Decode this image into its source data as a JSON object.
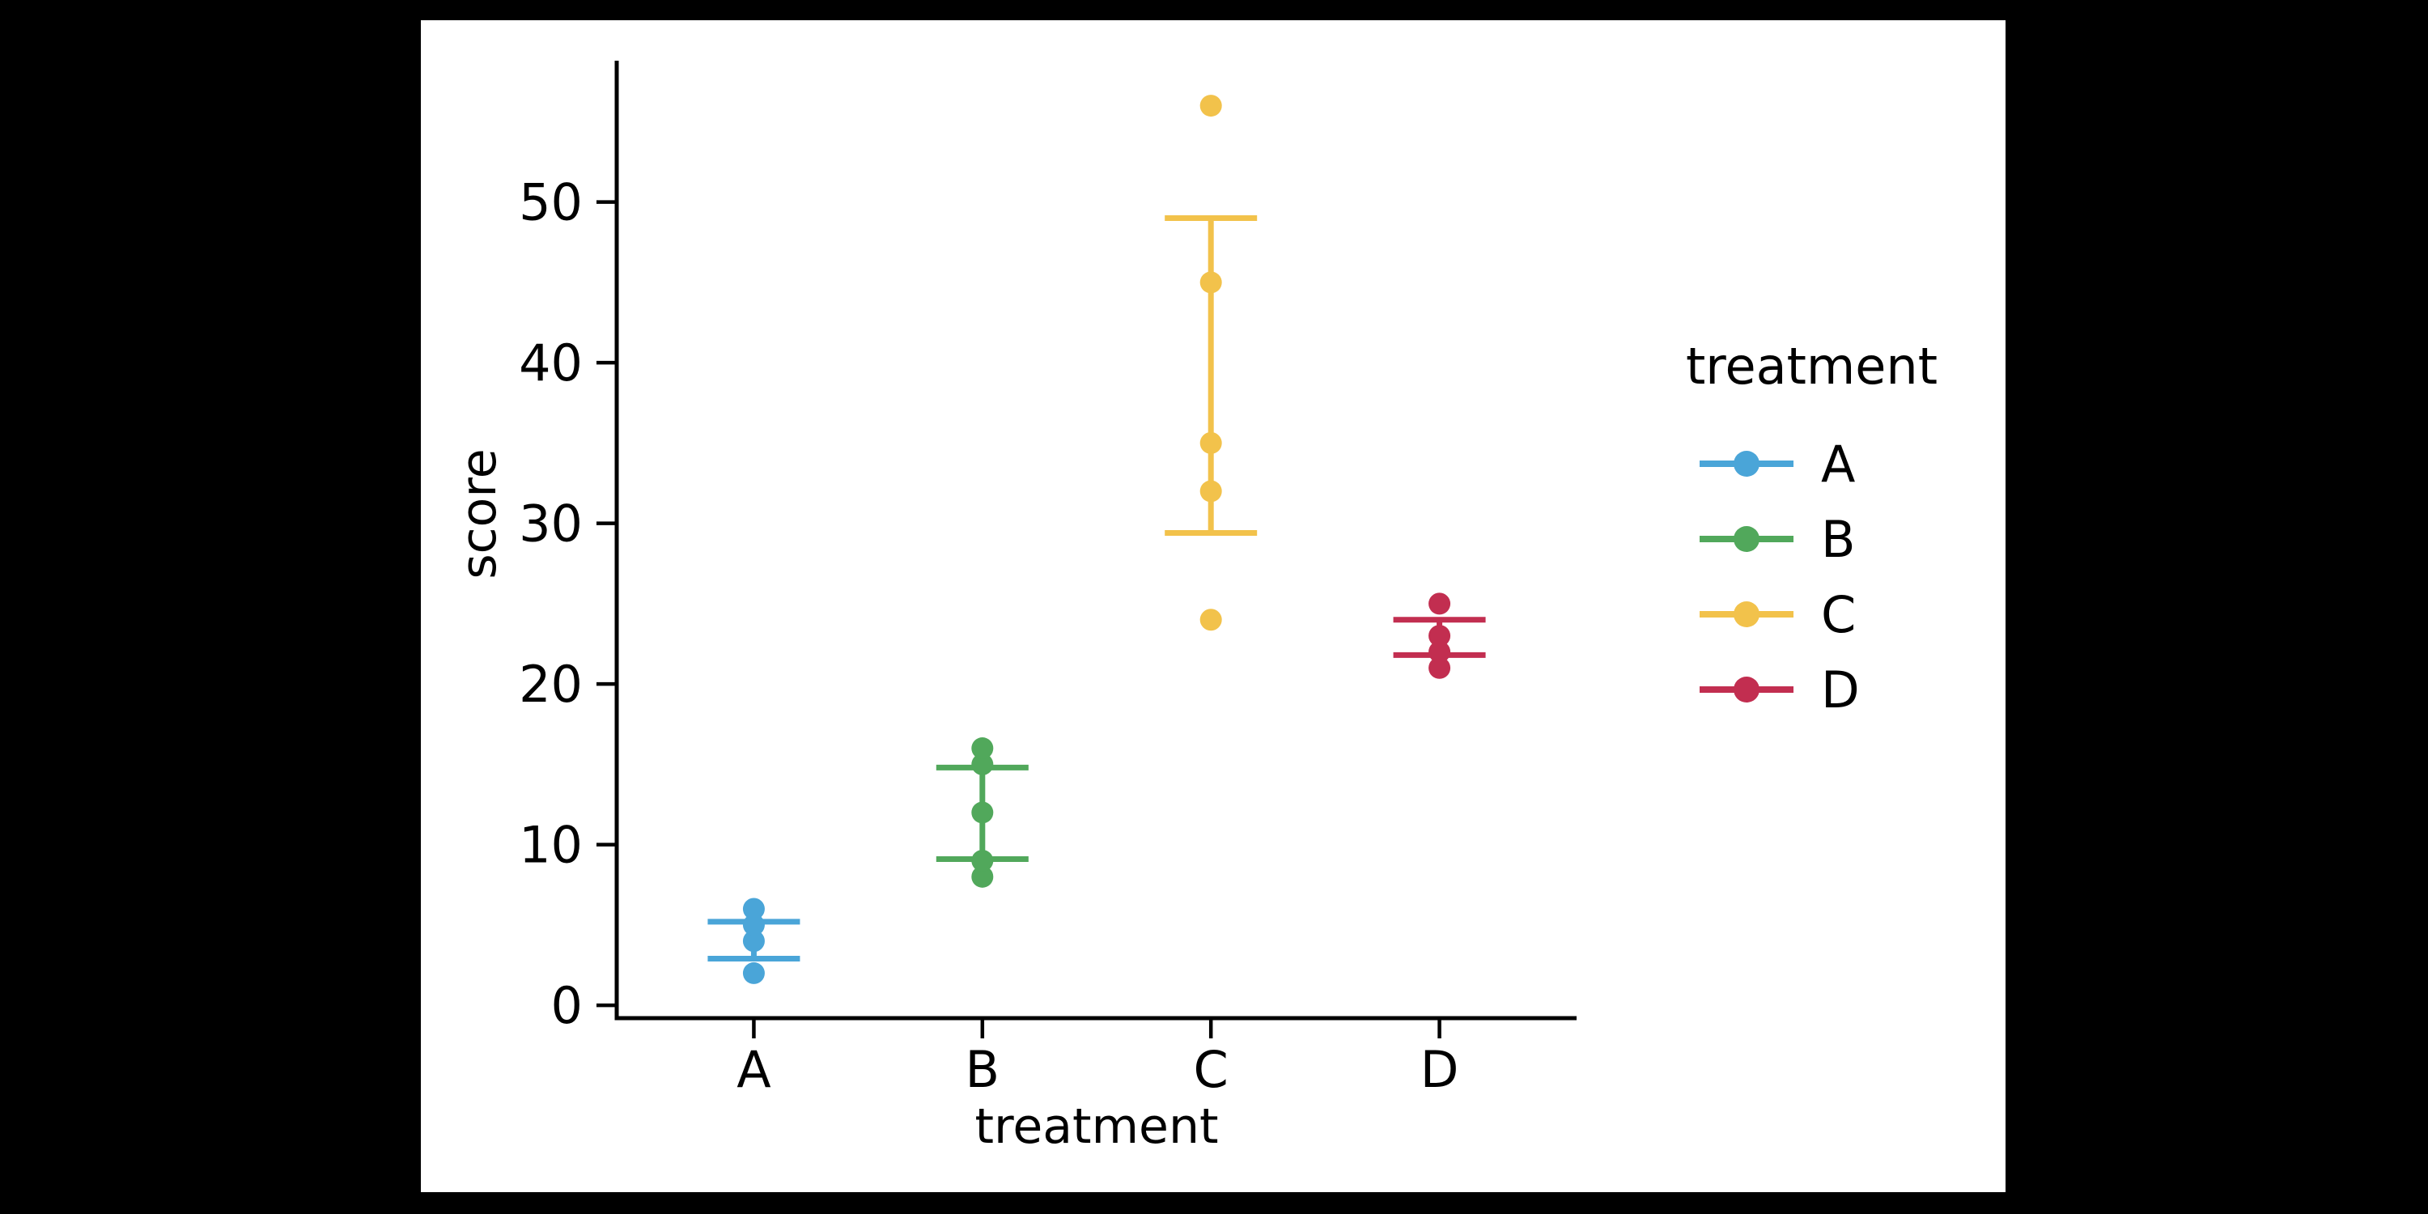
{
  "colors": {
    "page_background": "#000000",
    "figure_background": "#ffffff",
    "axis": "#000000",
    "text": "#000000"
  },
  "chart_data": {
    "type": "scatter",
    "title": "",
    "xlabel": "treatment",
    "ylabel": "score",
    "categories": [
      "A",
      "B",
      "C",
      "D"
    ],
    "yticks": [
      0,
      10,
      20,
      30,
      40,
      50
    ],
    "ylim": [
      -0.8,
      58.8
    ],
    "grid": false,
    "marker": "circle",
    "series": [
      {
        "name": "A",
        "color": "#4AA5D8",
        "points": [
          2,
          4,
          5,
          6
        ],
        "errorbar_low": 2.9,
        "errorbar_high": 5.2
      },
      {
        "name": "B",
        "color": "#51A85B",
        "points": [
          8,
          9,
          12,
          15,
          16
        ],
        "errorbar_low": 9.1,
        "errorbar_high": 14.8
      },
      {
        "name": "C",
        "color": "#F2C24B",
        "points": [
          24,
          32,
          35,
          45,
          56
        ],
        "errorbar_low": 29.4,
        "errorbar_high": 49.0
      },
      {
        "name": "D",
        "color": "#C22E50",
        "points": [
          21,
          22,
          23,
          25
        ],
        "errorbar_low": 21.8,
        "errorbar_high": 24.0
      }
    ],
    "legend": {
      "title": "treatment",
      "entries": [
        "A",
        "B",
        "C",
        "D"
      ],
      "position": "right"
    }
  }
}
